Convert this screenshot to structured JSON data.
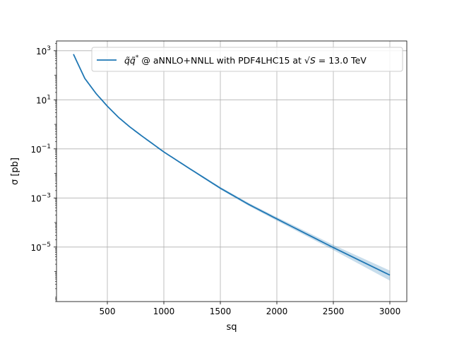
{
  "chart_data": {
    "type": "line",
    "xlabel": "sq",
    "ylabel": "σ [pb]",
    "xlim": [
      50,
      3150
    ],
    "ylim": [
      6e-08,
      2500
    ],
    "yscale": "log",
    "grid": true,
    "legend_position": "top-right",
    "x_ticks": [
      500,
      1000,
      1500,
      2000,
      2500,
      3000
    ],
    "x_tick_labels": [
      "500",
      "1000",
      "1500",
      "2000",
      "2500",
      "3000"
    ],
    "y_ticks": [
      {
        "value": 1000,
        "base": "10",
        "exp": "3"
      },
      {
        "value": 10,
        "base": "10",
        "exp": "1"
      },
      {
        "value": 0.1,
        "base": "10",
        "exp": "−1"
      },
      {
        "value": 0.001,
        "base": "10",
        "exp": "−3"
      },
      {
        "value": 1e-05,
        "base": "10",
        "exp": "−5"
      }
    ],
    "series": [
      {
        "name": "q̃q̃* @ aNNLO+NNLL with PDF4LHC15 at √S = 13.0 TeV",
        "legend_parts": {
          "symbol": "q̃q̃",
          "symbol_sup": "*",
          "middle": " @ aNNLO+NNLL with PDF4LHC15 at ",
          "sqrt_s": "S",
          "tail": " = 13.0 TeV"
        },
        "color": "#1f77b4",
        "band_color": "#1f77b4",
        "x": [
          200,
          300,
          400,
          500,
          600,
          700,
          800,
          1000,
          1200,
          1500,
          1750,
          2000,
          2500,
          3000
        ],
        "y": [
          720,
          75,
          18,
          5.5,
          1.9,
          0.78,
          0.35,
          0.075,
          0.019,
          0.0025,
          0.00055,
          0.00014,
          9.5e-06,
          7.2e-07
        ],
        "y_low": [
          690,
          72,
          17.2,
          5.25,
          1.8,
          0.74,
          0.33,
          0.071,
          0.0177,
          0.00225,
          0.00048,
          0.000118,
          7.5e-06,
          4.3e-07
        ],
        "y_high": [
          750,
          78,
          18.8,
          5.75,
          2.0,
          0.82,
          0.37,
          0.079,
          0.0203,
          0.0028,
          0.00063,
          0.000165,
          1.22e-05,
          1.1e-06
        ]
      }
    ]
  }
}
